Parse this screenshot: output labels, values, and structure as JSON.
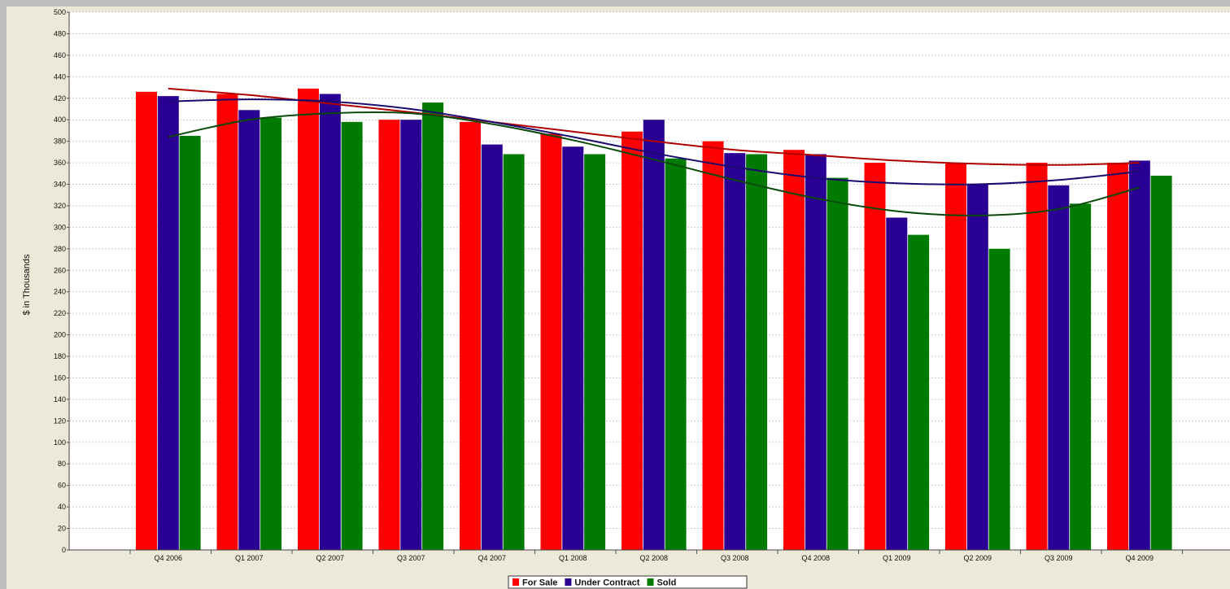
{
  "chart_data": {
    "type": "bar",
    "title": "",
    "xlabel": "",
    "ylabel": "$ in Thousands",
    "ylim": [
      0,
      500
    ],
    "ytick_step": 20,
    "grid": true,
    "legend_position": "bottom",
    "categories": [
      "Q4 2006",
      "Q1 2007",
      "Q2 2007",
      "Q3 2007",
      "Q4 2007",
      "Q1 2008",
      "Q2 2008",
      "Q3 2008",
      "Q4 2008",
      "Q1 2009",
      "Q2 2009",
      "Q3 2009",
      "Q4 2009"
    ],
    "series": [
      {
        "name": "For Sale",
        "color": "#ff0000",
        "values": [
          426,
          424,
          429,
          400,
          398,
          387,
          389,
          380,
          372,
          360,
          360,
          360,
          360
        ]
      },
      {
        "name": "Under Contract",
        "color": "#2a0094",
        "values": [
          422,
          409,
          424,
          400,
          377,
          375,
          400,
          369,
          368,
          309,
          340,
          339,
          362
        ]
      },
      {
        "name": "Sold",
        "color": "#007a00",
        "values": [
          385,
          402,
          398,
          416,
          368,
          368,
          364,
          368,
          346,
          293,
          280,
          322,
          348
        ]
      }
    ],
    "trendlines": [
      {
        "series": "For Sale",
        "color": "#b00000",
        "values": [
          429,
          423,
          415,
          407,
          398,
          389,
          380,
          372,
          367,
          362,
          359,
          358,
          360
        ]
      },
      {
        "series": "Under Contract",
        "color": "#1a0a6e",
        "values": [
          417,
          419,
          417,
          410,
          398,
          384,
          369,
          356,
          346,
          341,
          340,
          344,
          352
        ]
      },
      {
        "series": "Sold",
        "color": "#0a4a0a",
        "values": [
          384,
          400,
          406,
          406,
          396,
          381,
          363,
          344,
          327,
          315,
          311,
          317,
          337
        ]
      }
    ]
  }
}
